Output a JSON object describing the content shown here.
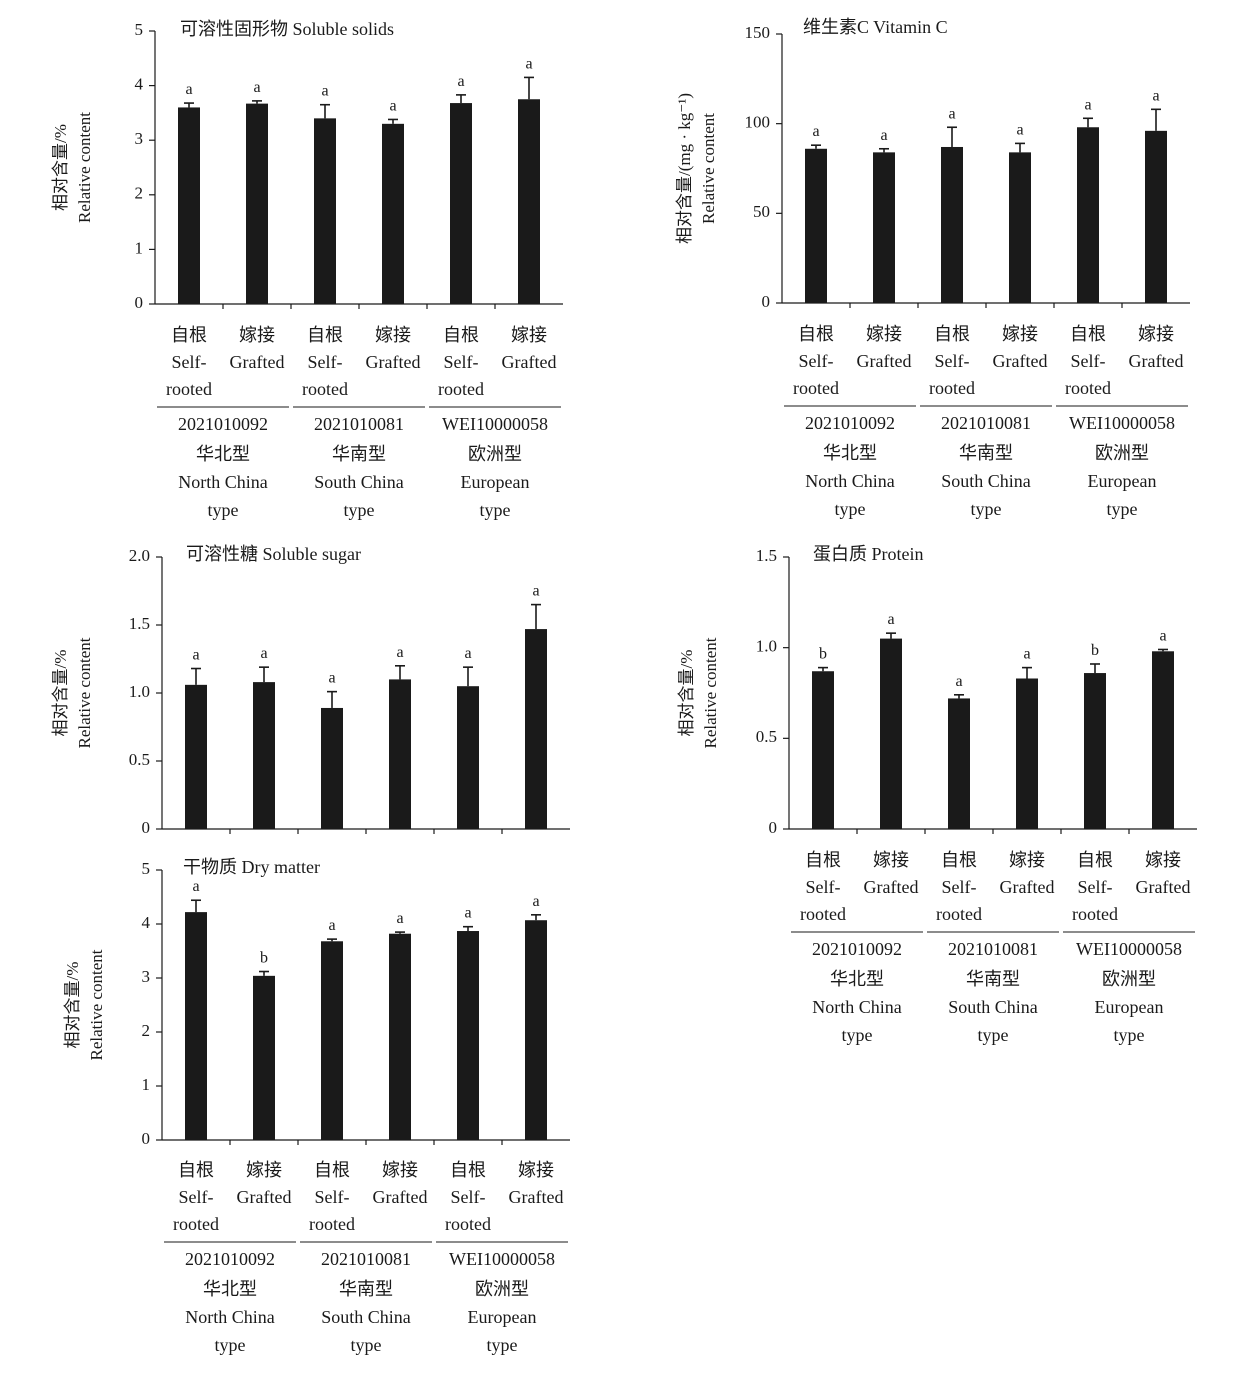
{
  "chart_data": [
    {
      "type": "bar",
      "title": "可溶性固形物 Soluble solids",
      "ylabel": [
        "相对含量/%",
        "Relative content"
      ],
      "ylim": [
        0,
        5
      ],
      "yticks": [
        "0",
        "1",
        "2",
        "3",
        "4",
        "5"
      ],
      "categories": [
        "自根 Self-rooted",
        "嫁接 Grafted",
        "自根 Self-rooted",
        "嫁接 Grafted",
        "自根 Self-rooted",
        "嫁接 Grafted"
      ],
      "values": [
        3.6,
        3.67,
        3.4,
        3.3,
        3.68,
        3.75
      ],
      "errors": [
        0.08,
        0.05,
        0.25,
        0.08,
        0.15,
        0.4
      ],
      "significance": [
        "a",
        "a",
        "a",
        "a",
        "a",
        "a"
      ],
      "groups": [
        {
          "id": "2021010092",
          "name_cn": "华北型",
          "name_en": [
            "North China",
            "type"
          ]
        },
        {
          "id": "2021010081",
          "name_cn": "华南型",
          "name_en": [
            "South China",
            "type"
          ]
        },
        {
          "id": "WEI10000058",
          "name_cn": "欧洲型",
          "name_en": [
            "European",
            "type"
          ]
        }
      ]
    },
    {
      "type": "bar",
      "title": "维生素C Vitamin C",
      "ylabel": [
        "相对含量/(mg · kg⁻¹)",
        "Relative content"
      ],
      "ylim": [
        0,
        150
      ],
      "yticks": [
        "0",
        "50",
        "100",
        "150"
      ],
      "categories": [
        "自根 Self-rooted",
        "嫁接 Grafted",
        "自根 Self-rooted",
        "嫁接 Grafted",
        "自根 Self-rooted",
        "嫁接 Grafted"
      ],
      "values": [
        86,
        84,
        87,
        84,
        98,
        96
      ],
      "errors": [
        2,
        2,
        11,
        5,
        5,
        12
      ],
      "significance": [
        "a",
        "a",
        "a",
        "a",
        "a",
        "a"
      ],
      "groups": [
        {
          "id": "2021010092",
          "name_cn": "华北型",
          "name_en": [
            "North China",
            "type"
          ]
        },
        {
          "id": "2021010081",
          "name_cn": "华南型",
          "name_en": [
            "South China",
            "type"
          ]
        },
        {
          "id": "WEI10000058",
          "name_cn": "欧洲型",
          "name_en": [
            "European",
            "type"
          ]
        }
      ]
    },
    {
      "type": "bar",
      "title": "可溶性糖 Soluble sugar",
      "ylabel": [
        "相对含量/%",
        "Relative content"
      ],
      "ylim": [
        0,
        2.0
      ],
      "yticks": [
        "0",
        "0.5",
        "1.0",
        "1.5",
        "2.0"
      ],
      "categories": [
        "",
        "",
        "",
        "",
        "",
        ""
      ],
      "values": [
        1.06,
        1.08,
        0.89,
        1.1,
        1.05,
        1.47
      ],
      "errors": [
        0.12,
        0.11,
        0.12,
        0.1,
        0.14,
        0.18
      ],
      "significance": [
        "a",
        "a",
        "a",
        "a",
        "a",
        "a"
      ],
      "groups": []
    },
    {
      "type": "bar",
      "title": "蛋白质 Protein",
      "ylabel": [
        "相对含量/%",
        "Relative content"
      ],
      "ylim": [
        0,
        1.5
      ],
      "yticks": [
        "0",
        "0.5",
        "1.0",
        "1.5"
      ],
      "categories": [
        "自根 Self-rooted",
        "嫁接 Grafted",
        "自根 Self-rooted",
        "嫁接 Grafted",
        "自根 Self-rooted",
        "嫁接 Grafted"
      ],
      "values": [
        0.87,
        1.05,
        0.72,
        0.83,
        0.86,
        0.98
      ],
      "errors": [
        0.02,
        0.03,
        0.02,
        0.06,
        0.05,
        0.01
      ],
      "significance": [
        "b",
        "a",
        "a",
        "a",
        "b",
        "a"
      ],
      "groups": [
        {
          "id": "2021010092",
          "name_cn": "华北型",
          "name_en": [
            "North China",
            "type"
          ]
        },
        {
          "id": "2021010081",
          "name_cn": "华南型",
          "name_en": [
            "South China",
            "type"
          ]
        },
        {
          "id": "WEI10000058",
          "name_cn": "欧洲型",
          "name_en": [
            "European",
            "type"
          ]
        }
      ]
    },
    {
      "type": "bar",
      "title": "干物质 Dry matter",
      "ylabel": [
        "相对含量/%",
        "Relative content"
      ],
      "ylim": [
        0,
        5
      ],
      "yticks": [
        "0",
        "1",
        "2",
        "3",
        "4",
        "5"
      ],
      "categories": [
        "自根 Self-rooted",
        "嫁接 Grafted",
        "自根 Self-rooted",
        "嫁接 Grafted",
        "自根 Self-rooted",
        "嫁接 Grafted"
      ],
      "values": [
        4.22,
        3.04,
        3.68,
        3.82,
        3.87,
        4.07
      ],
      "errors": [
        0.22,
        0.08,
        0.04,
        0.03,
        0.08,
        0.1
      ],
      "significance": [
        "a",
        "b",
        "a",
        "a",
        "a",
        "a"
      ],
      "groups": [
        {
          "id": "2021010092",
          "name_cn": "华北型",
          "name_en": [
            "North China",
            "type"
          ]
        },
        {
          "id": "2021010081",
          "name_cn": "华南型",
          "name_en": [
            "South China",
            "type"
          ]
        },
        {
          "id": "WEI10000058",
          "name_cn": "欧洲型",
          "name_en": [
            "European",
            "type"
          ]
        }
      ]
    }
  ]
}
